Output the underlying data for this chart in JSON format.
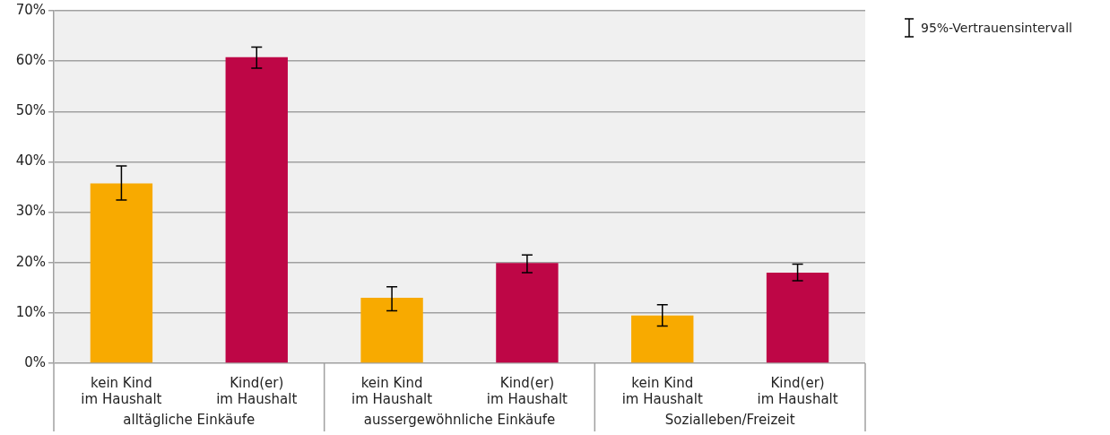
{
  "chart_data": {
    "type": "bar",
    "categories": [
      "kein Kind\nim Haushalt",
      "Kind(er)\nim Haushalt",
      "kein Kind\nim Haushalt",
      "Kind(er)\nim Haushalt",
      "kein Kind\nim Haushalt",
      "Kind(er)\nim Haushalt"
    ],
    "values": [
      35.7,
      60.8,
      13.0,
      19.9,
      9.5,
      18.0
    ],
    "colors": [
      "#f8aa00",
      "#be0646",
      "#f8aa00",
      "#be0646",
      "#f8aa00",
      "#be0646"
    ],
    "errors": [
      [
        32.4,
        39.2
      ],
      [
        58.6,
        62.8
      ],
      [
        10.4,
        15.2
      ],
      [
        18.0,
        21.5
      ],
      [
        7.4,
        11.6
      ],
      [
        16.4,
        19.7
      ]
    ],
    "ylim": [
      0,
      70
    ],
    "yticks": [
      {
        "value": 0,
        "label": "0%"
      },
      {
        "value": 10,
        "label": "10%"
      },
      {
        "value": 20,
        "label": "20%"
      },
      {
        "value": 30,
        "label": "30%"
      },
      {
        "value": 40,
        "label": "40%"
      },
      {
        "value": 50,
        "label": "50%"
      },
      {
        "value": 60,
        "label": "60%"
      },
      {
        "value": 70,
        "label": "70%"
      }
    ],
    "grid": "y",
    "annotations": [
      "alltägliche Einkäufe",
      "aussergewöhnliche Einkäufe",
      "Sozialleben/Freizeit",
      "95%-Vertrauensintervall"
    ]
  }
}
